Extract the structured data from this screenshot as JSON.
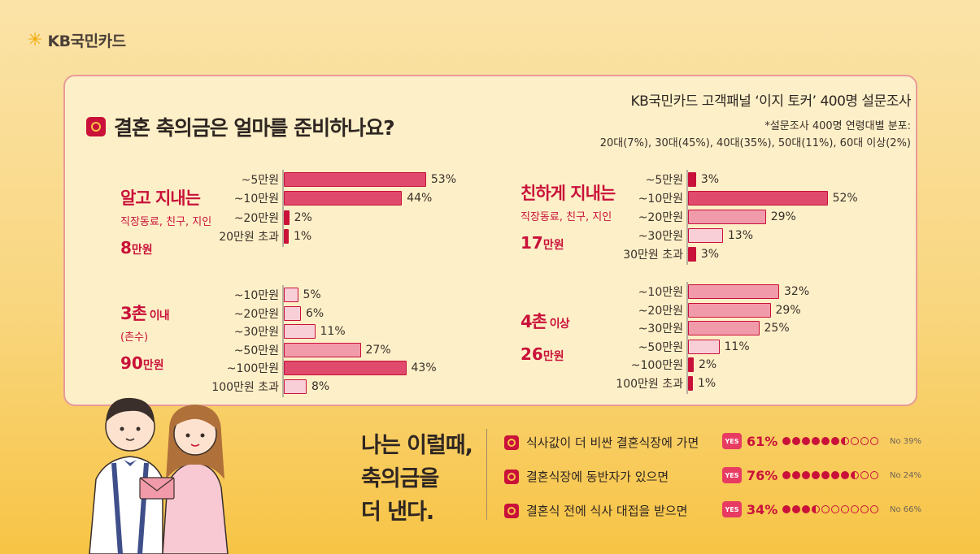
{
  "logo": {
    "brand": "KB국민카드"
  },
  "question": "결혼 축의금은 얼마를 준비하나요?",
  "survey": {
    "line1": "KB국민카드 고객패널 ‘이지 토커’ 400명 설문조사",
    "line2": "*설문조사 400명 연령대별 분포:",
    "line3": "20대(7%), 30대(45%), 40대(35%), 50대(11%), 60대 이상(2%)"
  },
  "groups": {
    "g1": {
      "name": "알고 지내는",
      "sub": "직장동료, 친구, 지인",
      "amount_num": "8",
      "amount_unit": "만원"
    },
    "g2": {
      "name": "친하게 지내는",
      "sub": "직장동료, 친구, 지인",
      "amount_num": "17",
      "amount_unit": "만원"
    },
    "g3": {
      "name": "3촌",
      "name_suffix": " 이내",
      "sub": "(촌수)",
      "amount_num": "90",
      "amount_unit": "만원"
    },
    "g4": {
      "name": "4촌",
      "name_suffix": " 이상",
      "amount_num": "26",
      "amount_unit": "만원"
    }
  },
  "colors": {
    "accent": "#c9113a",
    "bar_light": "#f9cfd7",
    "bar_mid": "#f19aaa",
    "bar_dark": "#e04a6c",
    "bar_deep": "#c9113a"
  },
  "chart_data": [
    {
      "type": "bar",
      "title": "알고 지내는 직장동료, 친구, 지인 8만원",
      "categories": [
        "~5만원",
        "~10만원",
        "~20만원",
        "20만원 초과"
      ],
      "values": [
        53,
        44,
        2,
        1
      ],
      "labels": [
        "53%",
        "44%",
        "2%",
        "1%"
      ],
      "ylim": [
        0,
        100
      ]
    },
    {
      "type": "bar",
      "title": "친하게 지내는 직장동료, 친구, 지인 17만원",
      "categories": [
        "~5만원",
        "~10만원",
        "~20만원",
        "~30만원",
        "30만원 초과"
      ],
      "values": [
        3,
        52,
        29,
        13,
        3
      ],
      "labels": [
        "3%",
        "52%",
        "29%",
        "13%",
        "3%"
      ],
      "ylim": [
        0,
        100
      ]
    },
    {
      "type": "bar",
      "title": "3촌 이내 (촌수) 90만원",
      "categories": [
        "~10만원",
        "~20만원",
        "~30만원",
        "~50만원",
        "~100만원",
        "100만원 초과"
      ],
      "values": [
        5,
        6,
        11,
        27,
        43,
        8
      ],
      "labels": [
        "5%",
        "6%",
        "11%",
        "27%",
        "43%",
        "8%"
      ],
      "ylim": [
        0,
        100
      ]
    },
    {
      "type": "bar",
      "title": "4촌 이상 26만원",
      "categories": [
        "~10만원",
        "~20만원",
        "~30만원",
        "~50만원",
        "~100만원",
        "100만원 초과"
      ],
      "values": [
        32,
        29,
        25,
        11,
        2,
        1
      ],
      "labels": [
        "32%",
        "29%",
        "25%",
        "11%",
        "2%",
        "1%"
      ],
      "ylim": [
        0,
        100
      ]
    }
  ],
  "bottom": {
    "title_lines": [
      "나는 이럴때,",
      "축의금을",
      "더 낸다."
    ],
    "yes_label": "YES",
    "conditions": [
      {
        "text": "식사값이 더 비싼 결혼식장에 가면",
        "yes": "61%",
        "no": "No 39%",
        "yes_value": 61
      },
      {
        "text": "결혼식장에 동반자가 있으면",
        "yes": "76%",
        "no": "No 24%",
        "yes_value": 76
      },
      {
        "text": "결혼식 전에 식사 대접을 받으면",
        "yes": "34%",
        "no": "No 66%",
        "yes_value": 34
      }
    ]
  }
}
